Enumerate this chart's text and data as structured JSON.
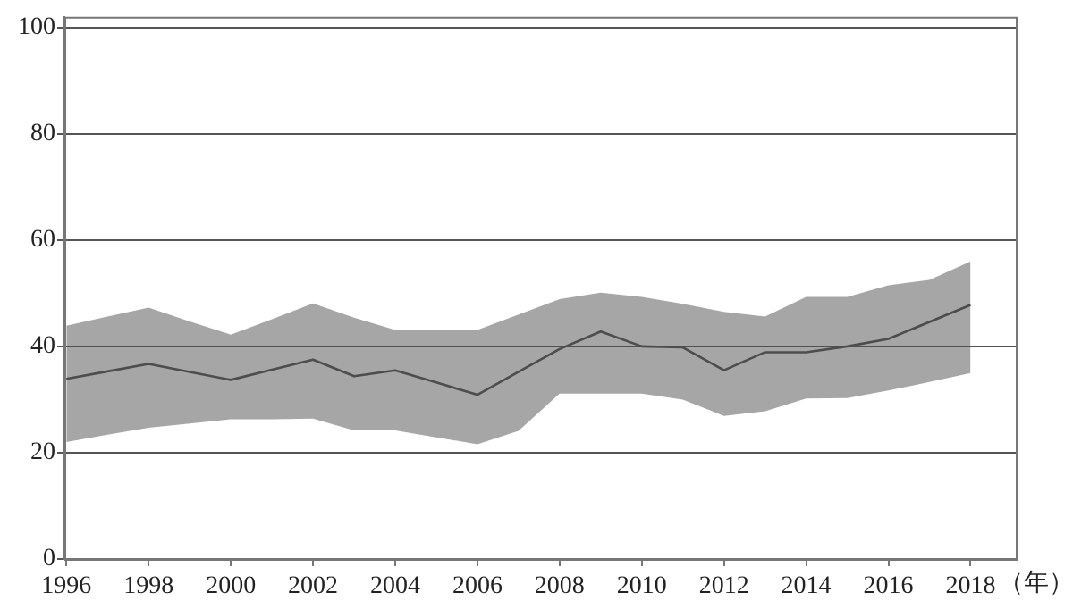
{
  "chart_data": {
    "type": "line",
    "xlabel": "（年）",
    "x": [
      1996,
      1997,
      1998,
      1999,
      2000,
      2001,
      2002,
      2003,
      2004,
      2005,
      2006,
      2007,
      2008,
      2009,
      2010,
      2011,
      2012,
      2013,
      2014,
      2015,
      2016,
      2017,
      2018
    ],
    "series": [
      {
        "color": "#4d4d4d",
        "values": [
          33.9,
          35.3,
          36.7,
          35.2,
          33.7,
          35.6,
          37.5,
          34.4,
          35.5,
          33.2,
          30.9,
          35.2,
          39.5,
          42.8,
          40,
          39.8,
          35.5,
          38.9,
          38.9,
          40,
          41.4,
          44.6,
          47.8
        ],
        "lower": [
          22,
          23.4,
          24.7,
          25.5,
          26.3,
          26.3,
          26.4,
          24.2,
          24.2,
          22.9,
          21.6,
          24.1,
          31.1,
          31.1,
          31.1,
          30,
          26.9,
          27.8,
          30.2,
          30.3,
          31.7,
          33.3,
          35
        ],
        "upper": [
          43.9,
          45.6,
          47.3,
          44.7,
          42.2,
          45.1,
          48.1,
          45.4,
          43.1,
          43.1,
          43.1,
          46,
          48.9,
          50.1,
          49.3,
          48,
          46.5,
          45.6,
          49.3,
          49.3,
          51.5,
          52.5,
          56
        ]
      }
    ],
    "xlim": [
      1995.95,
      2019.1
    ],
    "xticks": [
      1996,
      1998,
      2000,
      2002,
      2004,
      2006,
      2008,
      2010,
      2012,
      2014,
      2016,
      2018
    ],
    "ylim": [
      0,
      102
    ],
    "yticks": [
      0,
      20,
      40,
      60,
      80,
      100
    ],
    "grid": "y",
    "legend": false,
    "marker": "none",
    "line_style": "solid"
  }
}
